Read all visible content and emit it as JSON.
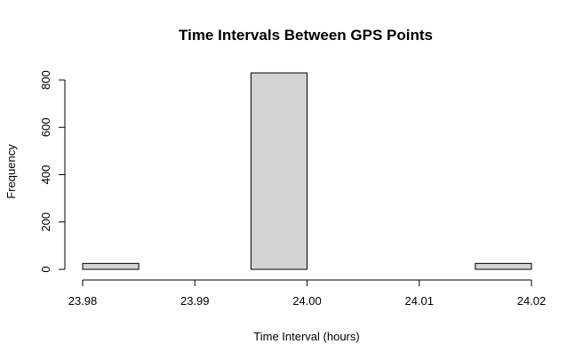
{
  "chart_data": {
    "type": "bar",
    "title": "Time Intervals Between GPS Points",
    "xlabel": "Time Interval (hours)",
    "ylabel": "Frequency",
    "bins": [
      {
        "from": 23.98,
        "to": 23.985,
        "count": 25
      },
      {
        "from": 23.985,
        "to": 23.99,
        "count": 0
      },
      {
        "from": 23.99,
        "to": 23.995,
        "count": 0
      },
      {
        "from": 23.995,
        "to": 24.0,
        "count": 830
      },
      {
        "from": 24.0,
        "to": 24.005,
        "count": 0
      },
      {
        "from": 24.005,
        "to": 24.01,
        "count": 0
      },
      {
        "from": 24.01,
        "to": 24.015,
        "count": 0
      },
      {
        "from": 24.015,
        "to": 24.02,
        "count": 25
      }
    ],
    "xlim": [
      23.98,
      24.02
    ],
    "ylim": [
      0,
      830
    ],
    "x_ticks": [
      23.98,
      23.99,
      24.0,
      24.01,
      24.02
    ],
    "x_tick_labels": [
      "23.98",
      "23.99",
      "24.00",
      "24.01",
      "24.02"
    ],
    "y_ticks": [
      0,
      200,
      400,
      600,
      800
    ],
    "y_tick_labels": [
      "0",
      "200",
      "400",
      "600",
      "800"
    ],
    "bar_color": "#d3d3d3",
    "grid": false,
    "legend": "none"
  }
}
